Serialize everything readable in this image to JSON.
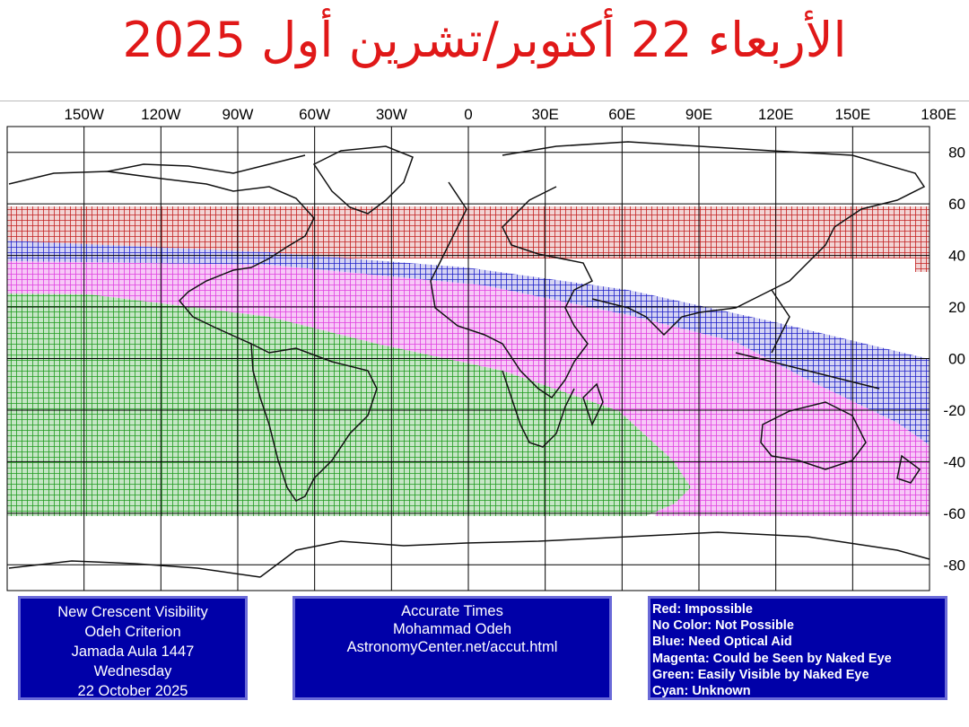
{
  "title": "الأربعاء 22 أكتوبر/تشرين أول 2025",
  "map": {
    "longitude_labels": [
      "150W",
      "120W",
      "90W",
      "60W",
      "30W",
      "0",
      "30E",
      "60E",
      "90E",
      "120E",
      "150E",
      "180E"
    ],
    "latitude_labels": [
      "80",
      "60",
      "40",
      "20",
      "00",
      "-20",
      "-40",
      "-60",
      "-80"
    ],
    "colors": {
      "red": "#c22020",
      "blue": "#2020c8",
      "magenta": "#e040e0",
      "green": "#1e9a1e",
      "grid": "#000000"
    }
  },
  "info_left": {
    "lines": [
      "New Crescent Visibility",
      "Odeh Criterion",
      "Jamada Aula 1447",
      "Wednesday",
      "22 October 2025"
    ]
  },
  "info_middle": {
    "lines": [
      "Accurate Times",
      "Mohammad Odeh",
      "AstronomyCenter.net/accut.html"
    ]
  },
  "legend": {
    "lines": [
      "Red: Impossible",
      "No Color: Not Possible",
      "Blue: Need Optical Aid",
      "Magenta: Could be Seen by Naked Eye",
      "Green: Easily Visible by Naked Eye",
      "Cyan: Unknown"
    ]
  }
}
